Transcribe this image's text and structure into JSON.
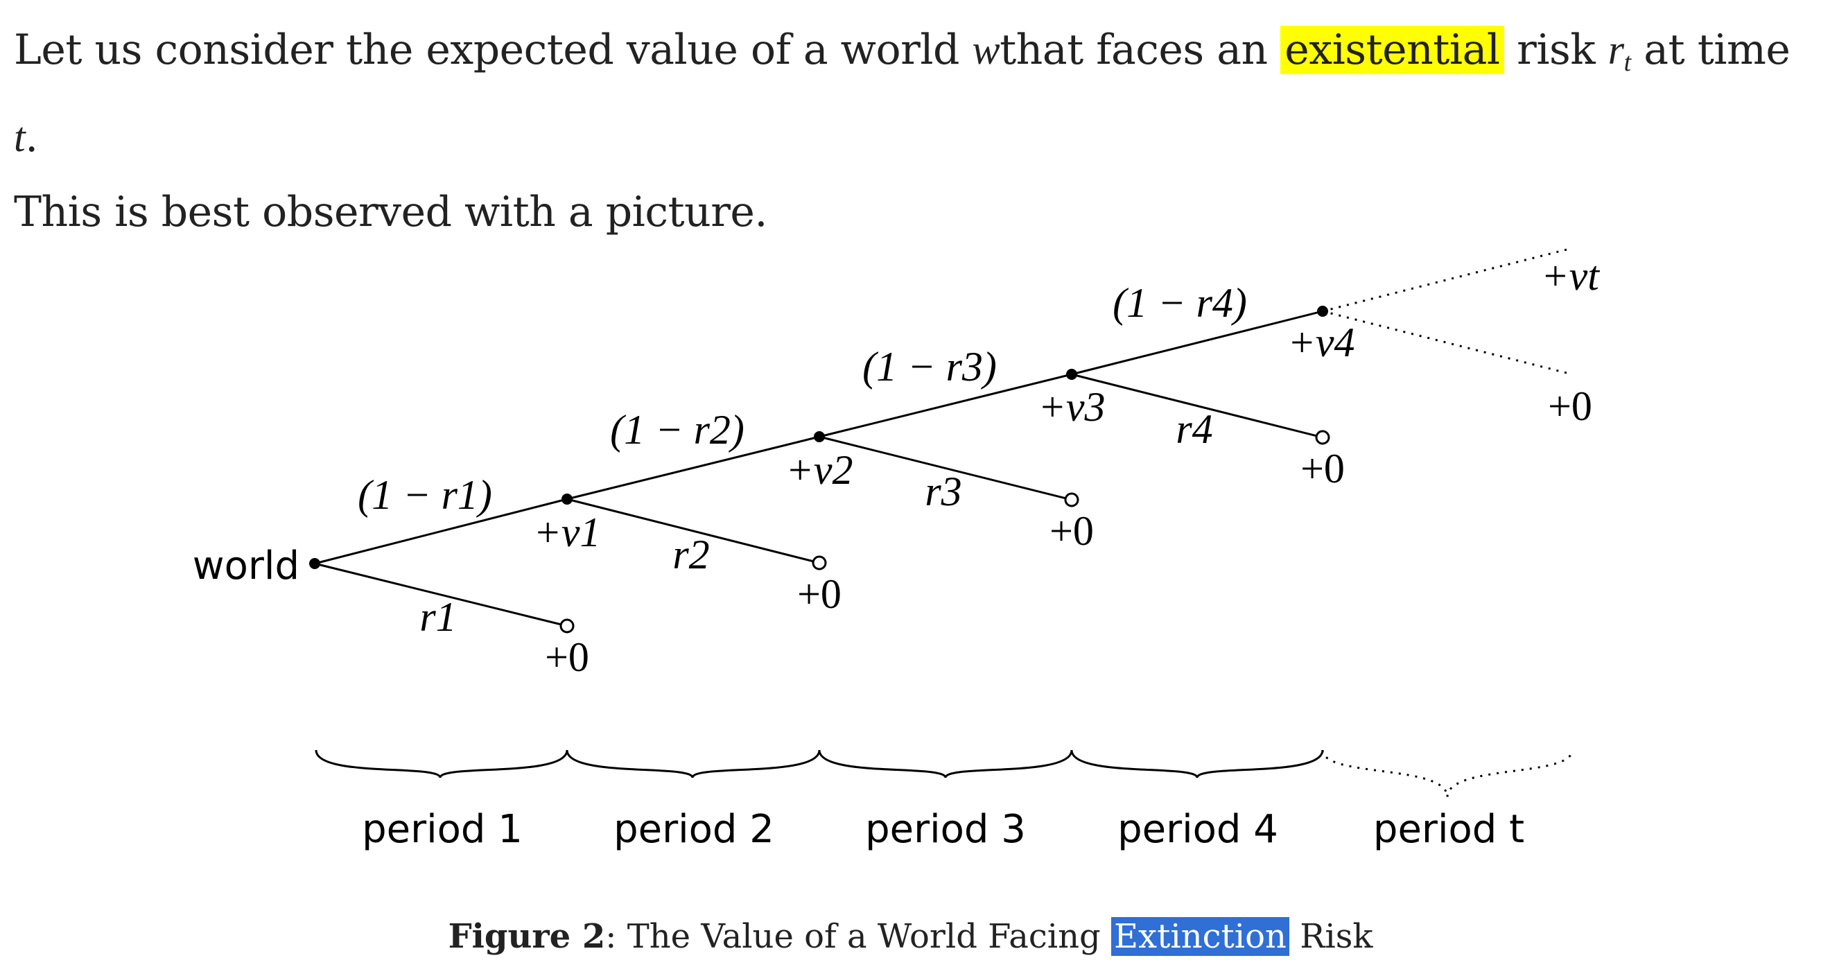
{
  "paragraph": {
    "line1_prefix": "Let us consider the expected value of a world ",
    "world_var": "w",
    "line1_middle": "that faces an ",
    "highlight_word": "existential",
    "line1_risk": " risk ",
    "risk_var": "r",
    "risk_sub": "t",
    "line1_attime": " at time ",
    "time_var": "t",
    "line1_end": ".",
    "line2": "This is best observed with a picture."
  },
  "figure": {
    "root_label": "world",
    "survive_labels": [
      "(1 − r1)",
      "(1 − r2)",
      "(1 − r3)",
      "(1 − r4)"
    ],
    "value_labels": [
      "+v1",
      "+v2",
      "+v3",
      "+v4",
      "+vt"
    ],
    "risk_labels": [
      "r1",
      "r2",
      "r3",
      "r4"
    ],
    "zero_label": "+0",
    "period_labels": [
      "period 1",
      "period 2",
      "period 3",
      "period 4",
      "period t"
    ]
  },
  "caption": {
    "label": "Figure 2",
    "colon": ": ",
    "text_before": "The Value of a World Facing ",
    "highlight": "Extinction",
    "text_after": " Risk"
  }
}
